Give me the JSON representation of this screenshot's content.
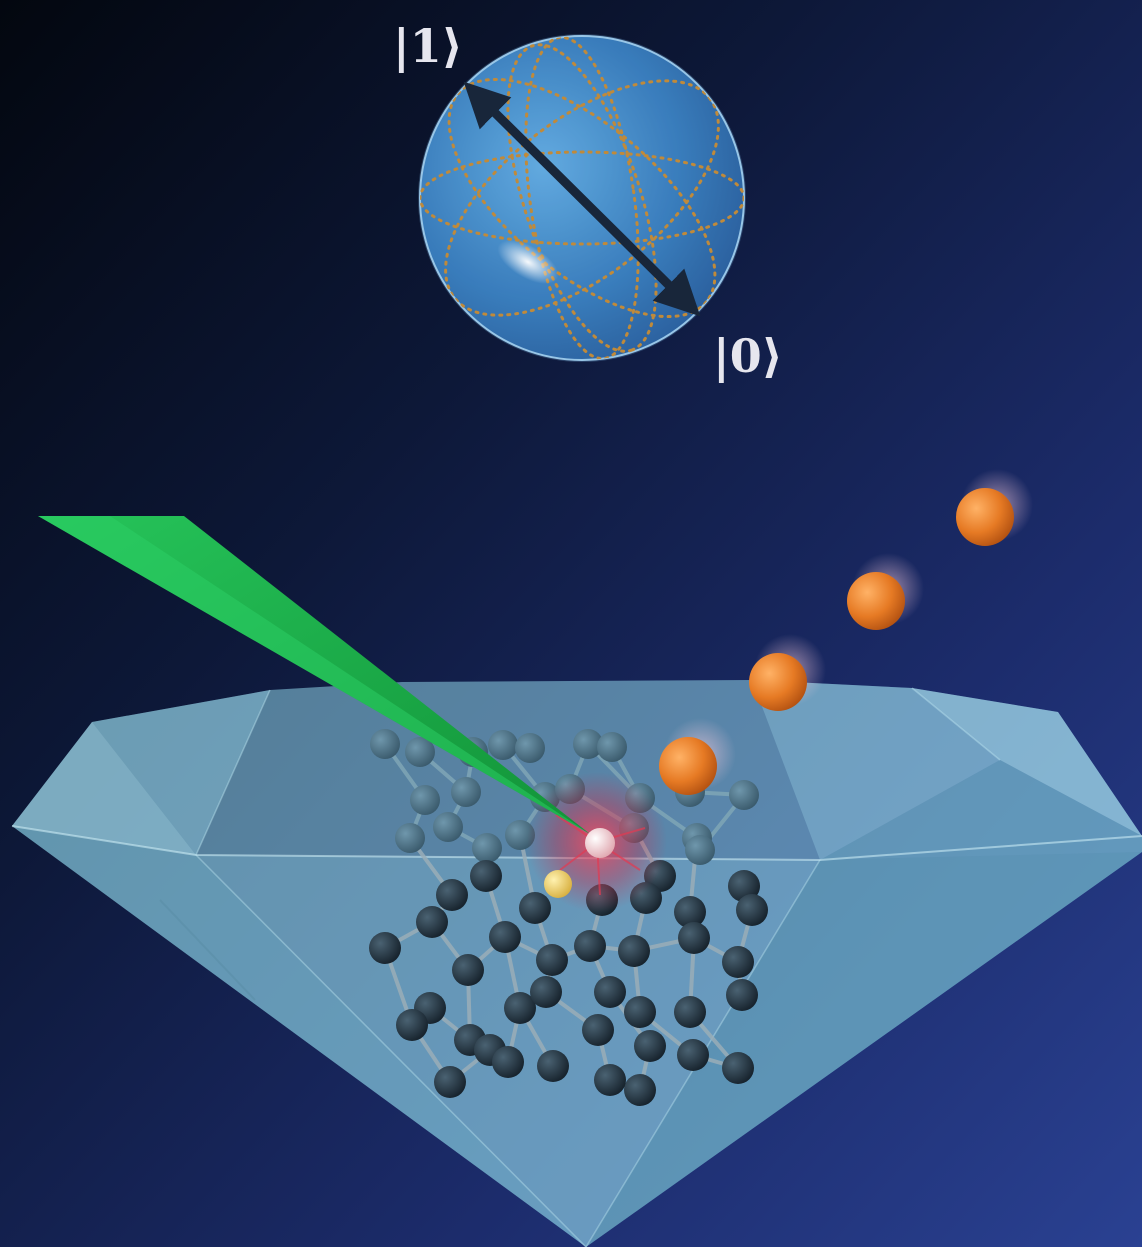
{
  "labels": {
    "ket_one": "|1⟩",
    "ket_zero": "|0⟩"
  },
  "colors": {
    "background_dark": "#040a14",
    "background_blue": "#27408c",
    "sphere_blue": "#3d86c6",
    "arrow": "#18263a",
    "dotted_orbit": "#c08a3a",
    "laser_green": "#1fa84a",
    "diamond_cyan": "#8fd3e8",
    "carbon_atom": "#243744",
    "nitrogen_atom": "#f0d070",
    "vacancy_atom": "#f3c6cc",
    "vacancy_glow": "#e0304a",
    "photon_orange": "#e87a22"
  },
  "icons": {
    "bloch_sphere": "qubit-sphere",
    "laser": "green-beam",
    "crystal": "diamond",
    "photons": "emitted-photons"
  }
}
